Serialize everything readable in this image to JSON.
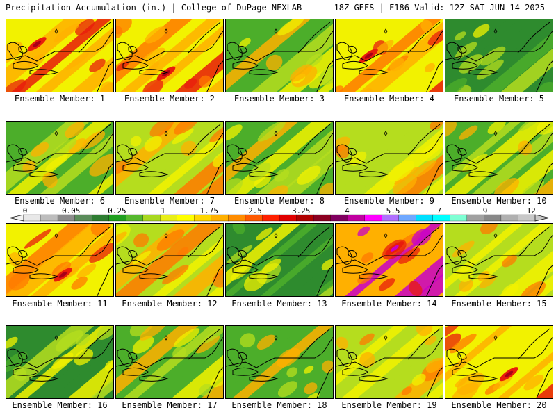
{
  "header": {
    "title": "Precipitation Accumulation (in.) | College of DuPage NEXLAB",
    "valid": "18Z GEFS | F186 Valid: 12Z SAT JUN 14 2025"
  },
  "colorbar": {
    "tick_labels": [
      "0",
      "0.05",
      "0.25",
      "1",
      "1.75",
      "2.5",
      "3.25",
      "4",
      "5.5",
      "7",
      "9",
      "12"
    ],
    "colors": [
      "#e8e8e8",
      "#bdbdbd",
      "#8c8c8c",
      "#5a8c5a",
      "#2e7d32",
      "#1f9e1f",
      "#55b82e",
      "#a8d820",
      "#e8ee18",
      "#ffff00",
      "#ffd700",
      "#ffb000",
      "#ff8c00",
      "#ff5a00",
      "#ff2000",
      "#e00000",
      "#b00000",
      "#8b0020",
      "#800060",
      "#c000a0",
      "#ff00ff",
      "#b070ff",
      "#6fa8ff",
      "#00e0ff",
      "#00ffff",
      "#7fffd4",
      "#a0a0a0",
      "#888888",
      "#b0b0b0",
      "#c8c8c8"
    ]
  },
  "palette": {
    "dark_green": "#2e8b2e",
    "green": "#4cae2a",
    "lime": "#b5dd1e",
    "yellow": "#f2f200",
    "orange": "#ffb000",
    "dark_orange": "#ff7a00",
    "red": "#e81c0c",
    "dark_red": "#a80018",
    "magenta": "#c800c8",
    "gray": "#909090"
  },
  "panels": [
    {
      "label": "Ensemble Member: 1",
      "intensity": 3
    },
    {
      "label": "Ensemble Member: 2",
      "intensity": 3
    },
    {
      "label": "Ensemble Member: 3",
      "intensity": 1
    },
    {
      "label": "Ensemble Member: 4",
      "intensity": 3
    },
    {
      "label": "Ensemble Member: 5",
      "intensity": 0
    },
    {
      "label": "Ensemble Member: 6",
      "intensity": 1
    },
    {
      "label": "Ensemble Member: 7",
      "intensity": 2
    },
    {
      "label": "Ensemble Member: 8",
      "intensity": 1
    },
    {
      "label": "Ensemble Member: 9",
      "intensity": 2
    },
    {
      "label": "Ensemble Member: 10",
      "intensity": 1
    },
    {
      "label": "Ensemble Member: 11",
      "intensity": 3
    },
    {
      "label": "Ensemble Member: 12",
      "intensity": 2
    },
    {
      "label": "Ensemble Member: 13",
      "intensity": 0
    },
    {
      "label": "Ensemble Member: 14",
      "intensity": 4
    },
    {
      "label": "Ensemble Member: 15",
      "intensity": 2
    },
    {
      "label": "Ensemble Member: 16",
      "intensity": 0
    },
    {
      "label": "Ensemble Member: 17",
      "intensity": 1
    },
    {
      "label": "Ensemble Member: 18",
      "intensity": 1
    },
    {
      "label": "Ensemble Member: 19",
      "intensity": 2
    },
    {
      "label": "Ensemble Member: 20",
      "intensity": 3
    }
  ]
}
